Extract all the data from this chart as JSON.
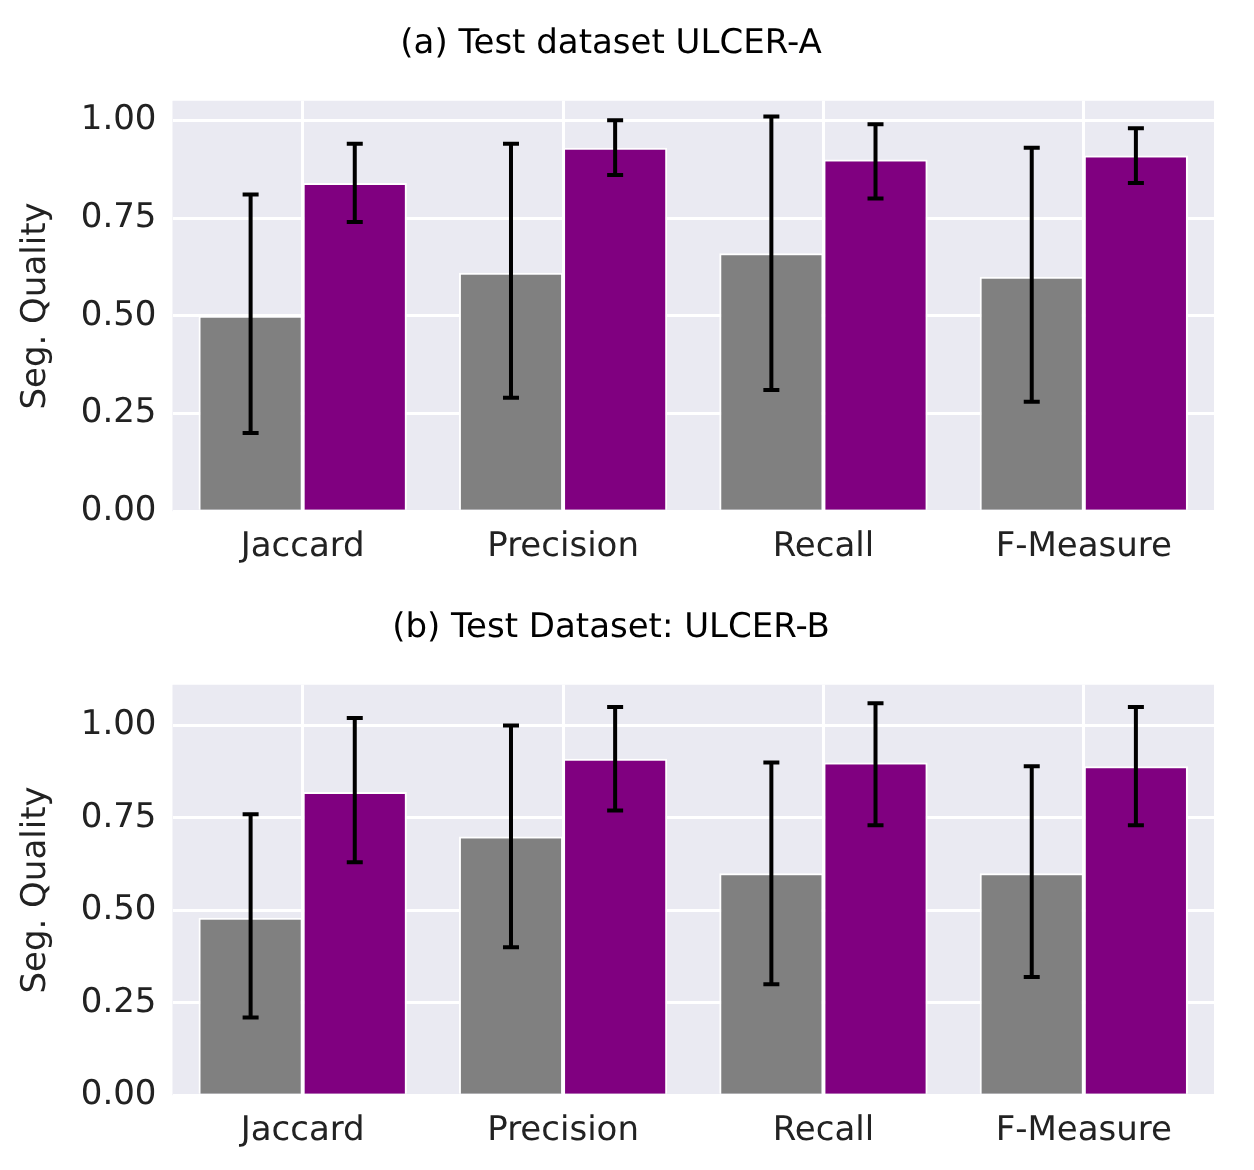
{
  "chart_data": [
    {
      "type": "bar",
      "title": "(a) Test dataset ULCER-A",
      "ylabel": "Seg. Quality",
      "categories": [
        "Jaccard",
        "Precision",
        "Recall",
        "F-Measure"
      ],
      "series": [
        {
          "color": "#808080",
          "values": [
            0.5,
            0.61,
            0.66,
            0.6
          ],
          "errors": [
            [
              0.2,
              0.81
            ],
            [
              0.29,
              0.94
            ],
            [
              0.31,
              1.01
            ],
            [
              0.28,
              0.93
            ]
          ]
        },
        {
          "color": "#800080",
          "values": [
            0.84,
            0.93,
            0.9,
            0.91
          ],
          "errors": [
            [
              0.74,
              0.94
            ],
            [
              0.86,
              1.0
            ],
            [
              0.8,
              0.99
            ],
            [
              0.84,
              0.98
            ]
          ]
        }
      ],
      "ylim": [
        0,
        1.05
      ],
      "yticks": [
        {
          "value": 0,
          "label": "0.00"
        },
        {
          "value": 0.25,
          "label": "0.25"
        },
        {
          "value": 0.5,
          "label": "0.50"
        },
        {
          "value": 0.75,
          "label": "0.75"
        },
        {
          "value": 1,
          "label": "1.00"
        }
      ],
      "grid": true,
      "legend": false
    },
    {
      "type": "bar",
      "title": "(b) Test Dataset: ULCER-B",
      "ylabel": "Seg. Quality",
      "categories": [
        "Jaccard",
        "Precision",
        "Recall",
        "F-Measure"
      ],
      "series": [
        {
          "color": "#808080",
          "values": [
            0.48,
            0.7,
            0.6,
            0.6
          ],
          "errors": [
            [
              0.21,
              0.76
            ],
            [
              0.4,
              1.0
            ],
            [
              0.3,
              0.9
            ],
            [
              0.32,
              0.89
            ]
          ]
        },
        {
          "color": "#800080",
          "values": [
            0.82,
            0.91,
            0.9,
            0.89
          ],
          "errors": [
            [
              0.63,
              1.02
            ],
            [
              0.77,
              1.05
            ],
            [
              0.73,
              1.06
            ],
            [
              0.73,
              1.05
            ]
          ]
        }
      ],
      "ylim": [
        0,
        1.11
      ],
      "yticks": [
        {
          "value": 0,
          "label": "0.00"
        },
        {
          "value": 0.25,
          "label": "0.25"
        },
        {
          "value": 0.5,
          "label": "0.50"
        },
        {
          "value": 0.75,
          "label": "0.75"
        },
        {
          "value": 1,
          "label": "1.00"
        }
      ],
      "grid": true,
      "legend": false
    }
  ]
}
